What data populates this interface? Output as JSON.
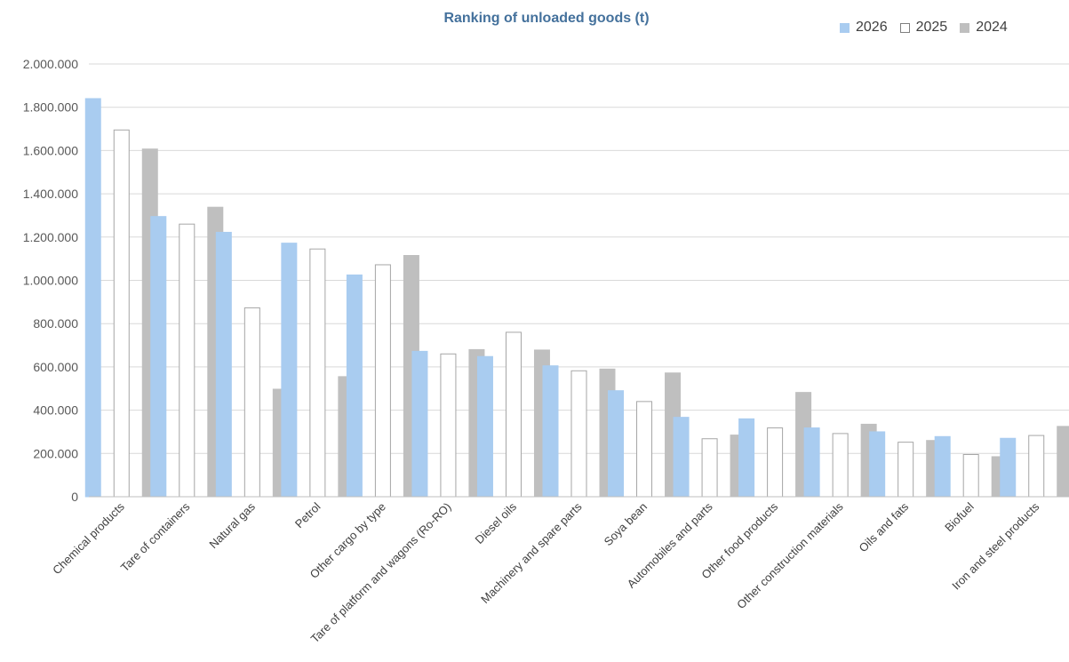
{
  "chart_data": {
    "type": "bar",
    "title": "Ranking of unloaded goods (t)",
    "xlabel": "",
    "ylabel": "",
    "ylim": [
      0,
      2000000
    ],
    "y_ticks": [
      {
        "value": 0,
        "label": "0"
      },
      {
        "value": 200000,
        "label": "200.000"
      },
      {
        "value": 400000,
        "label": "400.000"
      },
      {
        "value": 600000,
        "label": "600.000"
      },
      {
        "value": 800000,
        "label": "800.000"
      },
      {
        "value": 1000000,
        "label": "1.000.000"
      },
      {
        "value": 1200000,
        "label": "1.200.000"
      },
      {
        "value": 1400000,
        "label": "1.400.000"
      },
      {
        "value": 1600000,
        "label": "1.600.000"
      },
      {
        "value": 1800000,
        "label": "1.800.000"
      },
      {
        "value": 2000000,
        "label": "2.000.000"
      }
    ],
    "grid": true,
    "legend_position": "top-right",
    "categories": [
      "Chemical products",
      "Tare of containers",
      "Natural gas",
      "Petrol",
      "Other cargo by type",
      "Tare of platform and wagons (Ro-RO)",
      "Diesel oils",
      "Machinery and spare parts",
      "Soya bean",
      "Automobiles and parts",
      "Other food products",
      "Other construction materials",
      "Oils and fats",
      "Biofuel",
      "Iron and steel products"
    ],
    "series": [
      {
        "name": "2026",
        "color": "#a9ccf0",
        "stroke": "#a9ccf0",
        "values": [
          1840000,
          1295000,
          1222000,
          1172000,
          1025000,
          672000,
          648000,
          605000,
          490000,
          367000,
          360000,
          318000,
          300000,
          278000,
          270000
        ]
      },
      {
        "name": "2025",
        "color": "#ffffff",
        "stroke": "#a6a6a6",
        "values": [
          1695000,
          1260000,
          873000,
          1145000,
          1072000,
          660000,
          760000,
          582000,
          440000,
          268000,
          318000,
          292000,
          252000,
          195000,
          283000
        ]
      },
      {
        "name": "2024",
        "color": "#bfbfbf",
        "stroke": "#bfbfbf",
        "values": [
          1607000,
          1338000,
          497000,
          555000,
          1115000,
          680000,
          678000,
          590000,
          572000,
          285000,
          482000,
          335000,
          260000,
          185000,
          325000
        ]
      }
    ]
  }
}
